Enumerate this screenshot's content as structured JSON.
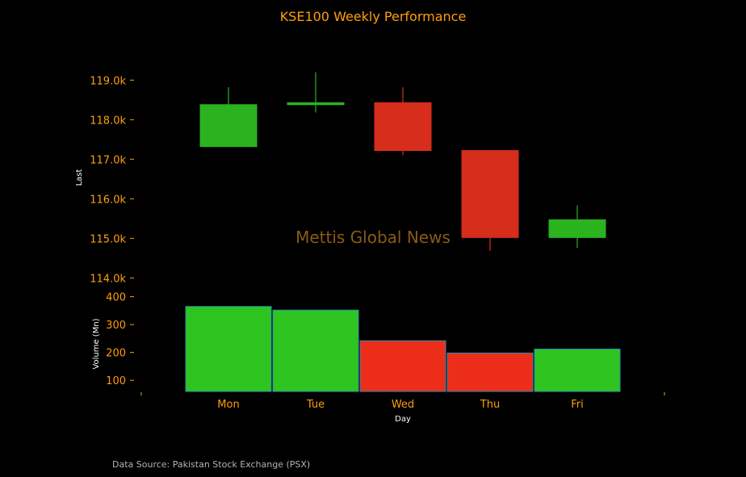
{
  "chart_data": [
    {
      "type": "candlestick",
      "title": "KSE100 Weekly Performance",
      "categories": [
        "Mon",
        "Tue",
        "Wed",
        "Thu",
        "Fri"
      ],
      "ylabel": "Last",
      "ylim": [
        113700,
        119700
      ],
      "yticks": [
        114000,
        115000,
        116000,
        117000,
        118000,
        119000
      ],
      "yticklabels": [
        "114.0k",
        "115.0k",
        "116.0k",
        "117.0k",
        "118.0k",
        "119.0k"
      ],
      "series": [
        {
          "open": 117320,
          "high": 118820,
          "low": 117320,
          "close": 118380
        },
        {
          "open": 118380,
          "high": 119200,
          "low": 118180,
          "close": 118430
        },
        {
          "open": 118430,
          "high": 118820,
          "low": 117100,
          "close": 117220
        },
        {
          "open": 117220,
          "high": 117220,
          "low": 114680,
          "close": 115020
        },
        {
          "open": 115020,
          "high": 115830,
          "low": 114760,
          "close": 115470
        }
      ],
      "up_color": "#2ab21f",
      "down_color": "#d62d1c",
      "watermark": "Mettis Global News"
    },
    {
      "type": "bar",
      "categories": [
        "Mon",
        "Tue",
        "Wed",
        "Thu",
        "Fri"
      ],
      "values": [
        365,
        352,
        242,
        198,
        212
      ],
      "ylabel": "Volume (Mn)",
      "xlabel": "Day",
      "ylim": [
        60,
        425
      ],
      "yticks": [
        100,
        200,
        300,
        400
      ],
      "colors": [
        "#2ec520",
        "#2ec520",
        "#ec2d1a",
        "#ec2d1a",
        "#2ec520"
      ]
    }
  ],
  "footer": {
    "source": "Data Source: Pakistan Stock Exchange (PSX)"
  },
  "colors": {
    "background": "#000000",
    "tick_text": "#ff9e0c",
    "label_text": "#ffffff",
    "watermark": "#8a5a14"
  }
}
